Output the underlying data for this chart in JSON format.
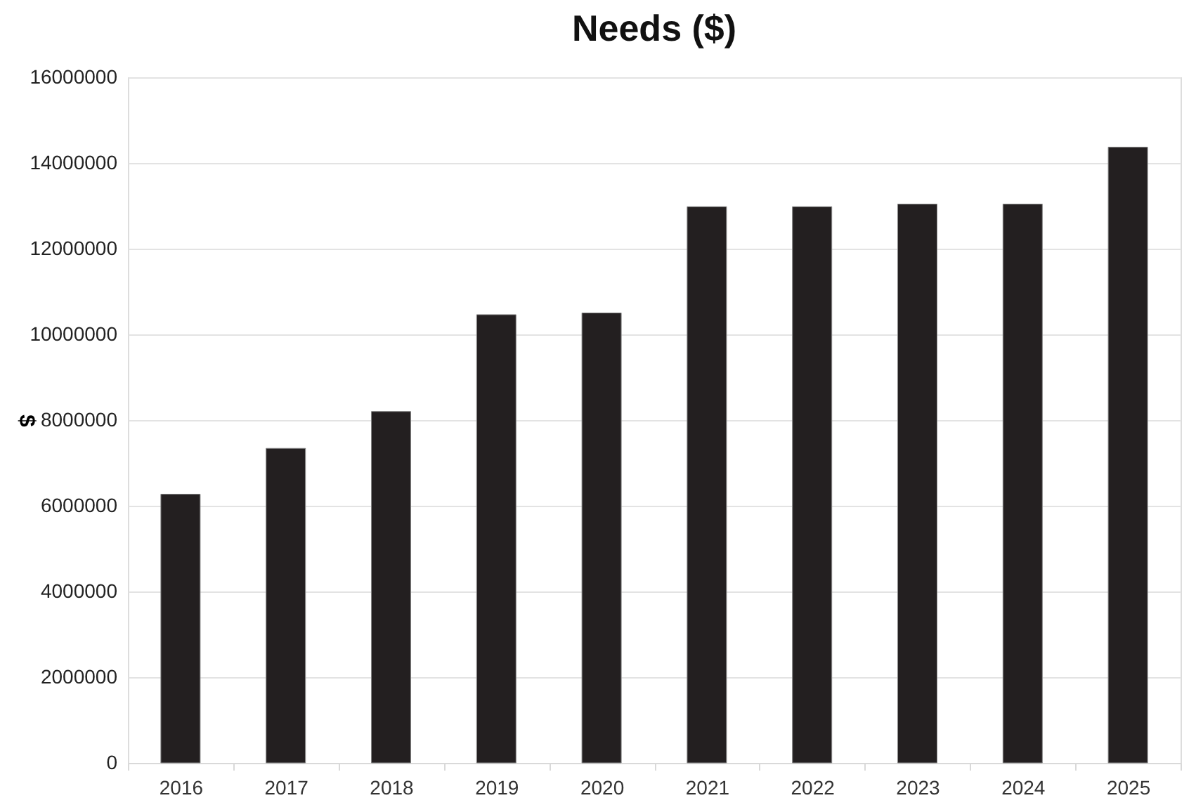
{
  "chart_data": {
    "type": "bar",
    "title": "Needs ($)",
    "ylabel": "$",
    "categories": [
      "2016",
      "2017",
      "2018",
      "2019",
      "2020",
      "2021",
      "2022",
      "2023",
      "2024",
      "2025"
    ],
    "values": [
      6270000,
      7340000,
      8200000,
      10460000,
      10500000,
      12980000,
      12980000,
      13040000,
      13040000,
      14370000
    ],
    "color": "#231f20",
    "ylim": [
      0,
      16000000
    ],
    "yticks": [
      0,
      2000000,
      4000000,
      6000000,
      8000000,
      10000000,
      12000000,
      14000000,
      16000000
    ],
    "grid": "y"
  }
}
